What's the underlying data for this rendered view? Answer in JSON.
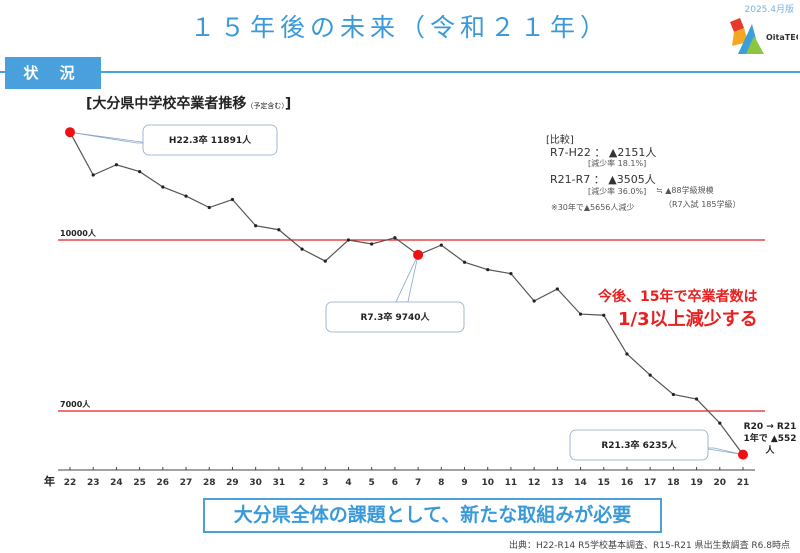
{
  "header": {
    "title": "１５年後の未来（令和２１年）",
    "edition": "2025.4月版",
    "logo_text": "OitaTEC"
  },
  "section": {
    "label": "状 況"
  },
  "chart_data": {
    "type": "line",
    "title": "大分県中学校卒業者推移",
    "title_note": "（予定含む）",
    "xlabel": "年",
    "categories": [
      "22",
      "23",
      "24",
      "25",
      "26",
      "27",
      "28",
      "29",
      "30",
      "31",
      "2",
      "3",
      "4",
      "5",
      "6",
      "7",
      "8",
      "9",
      "10",
      "11",
      "12",
      "13",
      "14",
      "15",
      "16",
      "17",
      "18",
      "19",
      "20",
      "21"
    ],
    "values": [
      11891,
      11140,
      11320,
      11200,
      10930,
      10770,
      10570,
      10710,
      10250,
      10180,
      9840,
      9630,
      10000,
      9930,
      10040,
      9740,
      9910,
      9610,
      9480,
      9410,
      8930,
      9140,
      8700,
      8680,
      8000,
      7630,
      7290,
      7210,
      6787,
      6235
    ],
    "ylim": [
      6000,
      12000
    ],
    "reference_lines": [
      {
        "value": 10000,
        "label": "10000人",
        "color": "#e02020"
      },
      {
        "value": 7000,
        "label": "7000人",
        "color": "#e02020"
      }
    ],
    "highlighted": [
      {
        "index": 0,
        "label": "H22.3卒 11891人"
      },
      {
        "index": 15,
        "label": "R7.3卒 9740人"
      },
      {
        "index": 29,
        "label": "R21.3卒 6235人"
      }
    ],
    "line_color": "#555555",
    "marker_color": "#222222",
    "highlight_color": "#ee1111"
  },
  "comparison": {
    "heading": "[比較]",
    "row1": "R7-H22 ： ▲2151人",
    "row1_rate": "[減少率 18.1%]",
    "row2": "R21-R7 ： ▲3505人",
    "row2_rate": "[減少率 36.0%]",
    "row2_equiv": "≒ ▲88学級規模",
    "row2_equiv_note": "（R7入試 185学級）",
    "note": "※30年で▲5656人減少"
  },
  "annotation": {
    "line1": "今後、15年で卒業者数は",
    "line2": "1/3以上減少する",
    "r20_r21_a": "R20 → R21",
    "r20_r21_b": "1年で ▲552人"
  },
  "footer": {
    "message": "大分県全体の課題として、新たな取組みが必要",
    "source": "出典：H22-R14 R5学校基本調査、R15-R21 県出生数調査 R6.8時点"
  }
}
